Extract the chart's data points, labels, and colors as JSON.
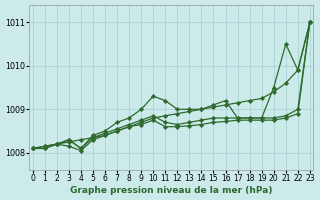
{
  "x": [
    0,
    1,
    2,
    3,
    4,
    5,
    6,
    7,
    8,
    9,
    10,
    11,
    12,
    13,
    14,
    15,
    16,
    17,
    18,
    19,
    20,
    21,
    22,
    23
  ],
  "series": [
    [
      1008.1,
      1008.15,
      1008.2,
      1008.25,
      1008.3,
      1008.35,
      1008.4,
      1008.5,
      1008.6,
      1008.7,
      1008.8,
      1008.85,
      1008.9,
      1008.95,
      1009.0,
      1009.05,
      1009.1,
      1009.15,
      1009.2,
      1009.25,
      1009.4,
      1009.6,
      1009.9,
      1011.0
    ],
    [
      1008.1,
      1008.1,
      1008.2,
      1008.3,
      1008.1,
      1008.4,
      1008.5,
      1008.7,
      1008.8,
      1009.0,
      1009.3,
      1009.2,
      1009.0,
      1009.0,
      1009.0,
      1009.1,
      1009.2,
      1008.8,
      1008.8,
      1008.8,
      1009.5,
      1010.5,
      1009.9,
      1011.0
    ],
    [
      1008.1,
      1008.15,
      1008.2,
      1008.3,
      1008.1,
      1008.35,
      1008.45,
      1008.55,
      1008.65,
      1008.75,
      1008.85,
      1008.7,
      1008.65,
      1008.7,
      1008.75,
      1008.8,
      1008.8,
      1008.8,
      1008.8,
      1008.8,
      1008.8,
      1008.85,
      1009.0,
      1011.0
    ],
    [
      1008.1,
      1008.1,
      1008.2,
      1008.15,
      1008.05,
      1008.3,
      1008.4,
      1008.5,
      1008.6,
      1008.65,
      1008.75,
      1008.6,
      1008.6,
      1008.62,
      1008.65,
      1008.7,
      1008.72,
      1008.75,
      1008.75,
      1008.75,
      1008.75,
      1008.8,
      1008.9,
      1011.0
    ]
  ],
  "line_color": "#2d6a2d",
  "marker": "D",
  "marker_size": 2.2,
  "bg_color": "#cceaea",
  "grid_color": "#aad4d4",
  "ylabel_ticks": [
    1008,
    1009,
    1010,
    1011
  ],
  "xlabel_ticks": [
    0,
    1,
    2,
    3,
    4,
    5,
    6,
    7,
    8,
    9,
    10,
    11,
    12,
    13,
    14,
    15,
    16,
    17,
    18,
    19,
    20,
    21,
    22,
    23
  ],
  "ylim": [
    1007.6,
    1011.4
  ],
  "xlim": [
    -0.3,
    23.3
  ],
  "xlabel": "Graphe pression niveau de la mer (hPa)",
  "tick_fontsize": 5.5,
  "xlabel_fontsize": 6.5,
  "linewidth": 0.9
}
